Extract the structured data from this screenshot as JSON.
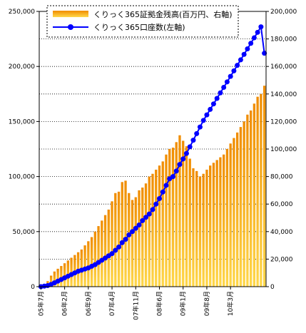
{
  "chart_data": {
    "type": "bar+line",
    "x_labels": [
      "05年7月",
      "06年2月",
      "06年9月",
      "07年4月",
      "07年11月",
      "08年6月",
      "09年1月",
      "09年8月",
      "10年3月"
    ],
    "left_axis": {
      "ticks": [
        "0",
        "50,000",
        "100,000",
        "150,000",
        "200,000",
        "250,000"
      ],
      "ylim": [
        0,
        250000
      ]
    },
    "right_axis": {
      "ticks": [
        "0",
        "20,000",
        "40,000",
        "60,000",
        "80,000",
        "100,000",
        "120,000",
        "140,000",
        "160,000",
        "180,000",
        "200,000"
      ],
      "ylim": [
        0,
        200000
      ]
    },
    "grid": "horizontal, dotted",
    "legend_placement": "top",
    "series": [
      {
        "name": "くりっく365証拠金残高(百万円、右軸)",
        "kind": "bar",
        "axis": "right",
        "color_top": "#f08c00",
        "color_bottom": "#ffd84a",
        "values": [
          1000,
          2000,
          4000,
          8000,
          11000,
          13000,
          15000,
          17000,
          19000,
          21000,
          23000,
          25000,
          27000,
          30000,
          33000,
          36000,
          40000,
          44000,
          48000,
          52000,
          56000,
          62000,
          68000,
          69000,
          76000,
          77000,
          68000,
          63000,
          65000,
          70000,
          72000,
          75000,
          80000,
          82000,
          85000,
          88000,
          91000,
          96000,
          100000,
          101000,
          105000,
          110000,
          106000,
          102000,
          93000,
          86000,
          84000,
          80000,
          82000,
          85000,
          88000,
          90000,
          92000,
          94000,
          96000,
          100000,
          104000,
          108000,
          112000,
          116000,
          120000,
          125000,
          128000,
          133000,
          138000,
          140000,
          146000
        ]
      },
      {
        "name": "くりっく365口座数(左軸)",
        "kind": "line",
        "axis": "left",
        "color": "#0000ff",
        "values": [
          0,
          500,
          1000,
          2000,
          3500,
          5000,
          6500,
          8000,
          9500,
          11000,
          12500,
          14000,
          15000,
          16000,
          17000,
          18500,
          20000,
          22000,
          24000,
          26000,
          28000,
          30000,
          33000,
          36000,
          40000,
          43000,
          47000,
          50000,
          53000,
          56000,
          60000,
          63000,
          66000,
          70000,
          75000,
          80000,
          86000,
          92000,
          98000,
          100000,
          105000,
          111000,
          116000,
          121000,
          127000,
          133000,
          139000,
          145000,
          151000,
          156000,
          161000,
          166000,
          171000,
          176000,
          181000,
          186000,
          191000,
          196000,
          201000,
          206000,
          211000,
          216000,
          221000,
          226000,
          231000,
          236000,
          212000
        ]
      }
    ]
  }
}
